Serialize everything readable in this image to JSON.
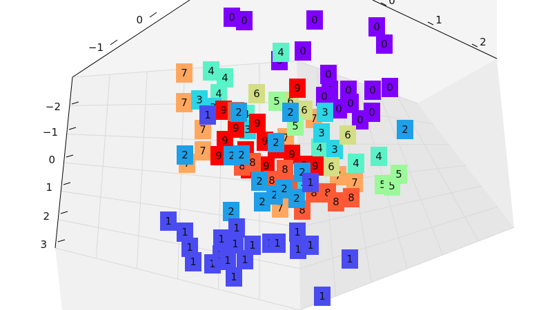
{
  "chart_data": {
    "type": "scatter",
    "projection": "3d",
    "title": "",
    "xlabel": "",
    "ylabel": "",
    "zlabel": "",
    "grid": true,
    "legend": "none",
    "axes": {
      "x": {
        "ticks": [
          "−1",
          "0"
        ]
      },
      "y": {
        "ticks": [
          "0",
          "1",
          "2"
        ]
      },
      "z": {
        "ticks": [
          "−2",
          "−1",
          "0",
          "1",
          "2",
          "3"
        ]
      }
    },
    "classes": {
      "0": "#7f00ff",
      "1": "#4a4cf2",
      "2": "#1f9fe8",
      "3": "#29d5e6",
      "4": "#5bf2c8",
      "5": "#9bf99a",
      "6": "#d3de85",
      "7": "#ffa75f",
      "8": "#ff5a35",
      "9": "#ff0000"
    },
    "points": [
      {
        "label": "0"
      },
      {
        "label": "0"
      },
      {
        "label": "0"
      },
      {
        "label": "0"
      },
      {
        "label": "0"
      },
      {
        "label": "0"
      },
      {
        "label": "0"
      },
      {
        "label": "0"
      },
      {
        "label": "0"
      },
      {
        "label": "0"
      },
      {
        "label": "0"
      },
      {
        "label": "0"
      },
      {
        "label": "0"
      },
      {
        "label": "0"
      },
      {
        "label": "0"
      },
      {
        "label": "0"
      },
      {
        "label": "0"
      },
      {
        "label": "4"
      },
      {
        "label": "4"
      },
      {
        "label": "4"
      },
      {
        "label": "4"
      },
      {
        "label": "4"
      },
      {
        "label": "4"
      },
      {
        "label": "4"
      },
      {
        "label": "4"
      },
      {
        "label": "7"
      },
      {
        "label": "7"
      },
      {
        "label": "7"
      },
      {
        "label": "7"
      },
      {
        "label": "7"
      },
      {
        "label": "7"
      },
      {
        "label": "7"
      },
      {
        "label": "7"
      },
      {
        "label": "7"
      },
      {
        "label": "7"
      },
      {
        "label": "7"
      },
      {
        "label": "3"
      },
      {
        "label": "3"
      },
      {
        "label": "3"
      },
      {
        "label": "3"
      },
      {
        "label": "3"
      },
      {
        "label": "3"
      },
      {
        "label": "3"
      },
      {
        "label": "6"
      },
      {
        "label": "6"
      },
      {
        "label": "6"
      },
      {
        "label": "6"
      },
      {
        "label": "6"
      },
      {
        "label": "5"
      },
      {
        "label": "5"
      },
      {
        "label": "5"
      },
      {
        "label": "5"
      },
      {
        "label": "5"
      },
      {
        "label": "9"
      },
      {
        "label": "9"
      },
      {
        "label": "9"
      },
      {
        "label": "9"
      },
      {
        "label": "9"
      },
      {
        "label": "9"
      },
      {
        "label": "9"
      },
      {
        "label": "9"
      },
      {
        "label": "9"
      },
      {
        "label": "9"
      },
      {
        "label": "9"
      },
      {
        "label": "9"
      },
      {
        "label": "9"
      },
      {
        "label": "9"
      },
      {
        "label": "8"
      },
      {
        "label": "8"
      },
      {
        "label": "8"
      },
      {
        "label": "8"
      },
      {
        "label": "8"
      },
      {
        "label": "8"
      },
      {
        "label": "8"
      },
      {
        "label": "8"
      },
      {
        "label": "8"
      },
      {
        "label": "8"
      },
      {
        "label": "8"
      },
      {
        "label": "2"
      },
      {
        "label": "2"
      },
      {
        "label": "2"
      },
      {
        "label": "2"
      },
      {
        "label": "2"
      },
      {
        "label": "2"
      },
      {
        "label": "2"
      },
      {
        "label": "2"
      },
      {
        "label": "2"
      },
      {
        "label": "2"
      },
      {
        "label": "2"
      },
      {
        "label": "2"
      },
      {
        "label": "2"
      },
      {
        "label": "2"
      },
      {
        "label": "1"
      },
      {
        "label": "1"
      },
      {
        "label": "1"
      },
      {
        "label": "1"
      },
      {
        "label": "1"
      },
      {
        "label": "1"
      },
      {
        "label": "1"
      },
      {
        "label": "1"
      },
      {
        "label": "1"
      },
      {
        "label": "1"
      },
      {
        "label": "1"
      },
      {
        "label": "1"
      },
      {
        "label": "1"
      },
      {
        "label": "1"
      },
      {
        "label": "1"
      },
      {
        "label": "1"
      },
      {
        "label": "1"
      },
      {
        "label": "1"
      },
      {
        "label": "1"
      },
      {
        "label": "1"
      },
      {
        "label": "1"
      },
      {
        "label": "1"
      }
    ]
  }
}
